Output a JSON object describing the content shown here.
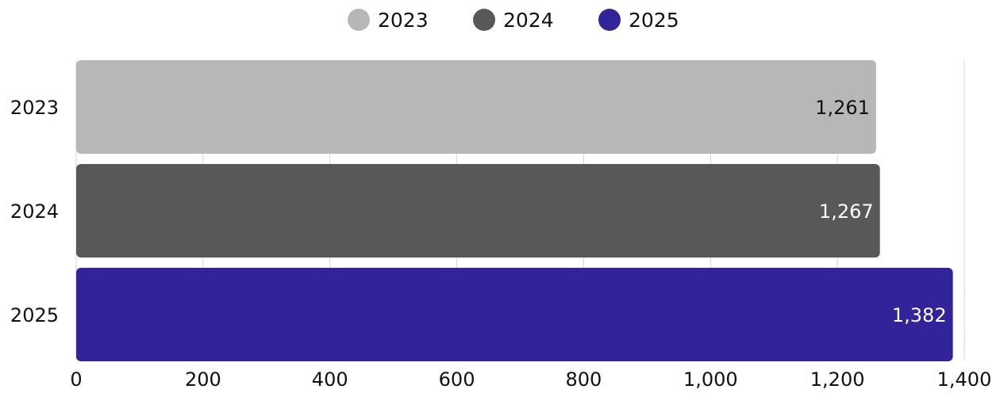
{
  "chart_data": {
    "type": "bar",
    "orientation": "horizontal",
    "categories": [
      "2023",
      "2024",
      "2025"
    ],
    "values": [
      1261,
      1267,
      1382
    ],
    "value_labels": [
      "1,261",
      "1,267",
      "1,382"
    ],
    "legend": {
      "position": "top",
      "entries": [
        "2023",
        "2024",
        "2025"
      ]
    },
    "colors": [
      "#b7b7b7",
      "#585858",
      "#31249b"
    ],
    "label_colors": [
      "#111111",
      "#ffffff",
      "#ffffff"
    ],
    "xlim": [
      0,
      1400
    ],
    "xticks": [
      0,
      200,
      400,
      600,
      800,
      1000,
      1200,
      1400
    ],
    "xtick_labels": [
      "0",
      "200",
      "400",
      "600",
      "800",
      "1,000",
      "1,200",
      "1,400"
    ],
    "grid": true,
    "title": "",
    "xlabel": "",
    "ylabel": ""
  }
}
